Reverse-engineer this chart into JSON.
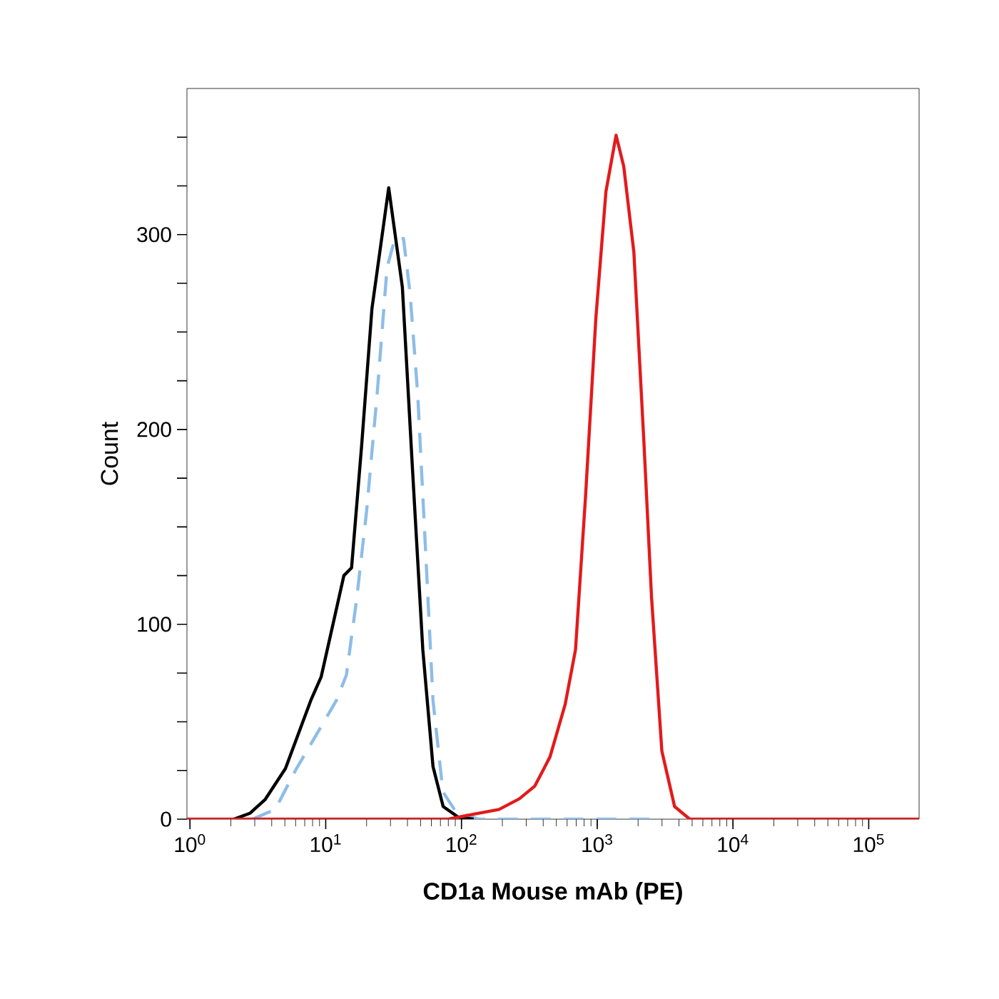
{
  "chart_data": {
    "type": "line",
    "xlabel": "CD1a Mouse mAb (PE)",
    "ylabel": "Count",
    "log": "x",
    "marker": "none",
    "grid": false,
    "xlim": [
      0.95,
      235000
    ],
    "ylim": [
      0,
      375
    ],
    "xticks": [
      {
        "value": 1,
        "label": "10$^{0}$"
      },
      {
        "value": 10,
        "label": "10$^{1}$"
      },
      {
        "value": 100,
        "label": "10$^{2}$"
      },
      {
        "value": 1000,
        "label": "10$^{3}$"
      },
      {
        "value": 10000,
        "label": "10$^{4}$"
      },
      {
        "value": 100000,
        "label": "10$^{5}$"
      }
    ],
    "yticks": [
      0,
      {
        "value": 25,
        "label": null
      },
      {
        "value": 50,
        "label": null
      },
      {
        "value": 75,
        "label": null
      },
      100,
      {
        "value": 125,
        "label": null
      },
      {
        "value": 150,
        "label": null
      },
      {
        "value": 175,
        "label": null
      },
      200,
      {
        "value": 225,
        "label": null
      },
      {
        "value": 250,
        "label": null
      },
      {
        "value": 275,
        "label": null
      },
      300,
      {
        "value": 325,
        "label": null
      },
      {
        "value": 350,
        "label": null
      }
    ],
    "series": [
      {
        "color": "#8dbde8",
        "line_style": "dashed",
        "x": [
          2.88,
          4.25,
          5.98,
          8.47,
          12,
          14.2,
          16.9,
          20,
          23.9,
          28.3,
          32.3,
          37.4,
          41.8,
          47.6,
          54.2,
          61.7,
          73,
          90.6,
          134,
          3000
        ],
        "values": [
          0,
          5,
          25,
          43,
          61,
          74,
          113,
          158,
          218,
          283,
          298,
          298,
          270,
          218,
          140,
          61,
          14,
          4,
          0,
          0
        ]
      },
      {
        "color": "#000000",
        "line_style": "solid",
        "x": [
          2.1,
          2.76,
          3.57,
          5.05,
          7.77,
          9.25,
          12,
          13.6,
          15.5,
          18.4,
          21.9,
          29.1,
          36.7,
          43.7,
          51.9,
          61.7,
          73.3,
          94.8,
          123
        ],
        "values": [
          0,
          3,
          10,
          26,
          61,
          73,
          108,
          125,
          129,
          192,
          262,
          324,
          273,
          178,
          87,
          27,
          6.5,
          1,
          0
        ]
      },
      {
        "color": "#e31a1c",
        "line_style": "solid",
        "x": [
          0.95,
          79.8,
          122,
          189,
          267,
          347,
          449,
          581,
          692,
          821,
          977,
          1159,
          1377,
          1568,
          1862,
          2213,
          2512,
          2993,
          3715,
          4808,
          235000
        ],
        "values": [
          0,
          0,
          2.5,
          5,
          10.5,
          17,
          32,
          59,
          87,
          166,
          257,
          322,
          351,
          335,
          291,
          192,
          114,
          35,
          6.5,
          0,
          0
        ]
      }
    ]
  }
}
